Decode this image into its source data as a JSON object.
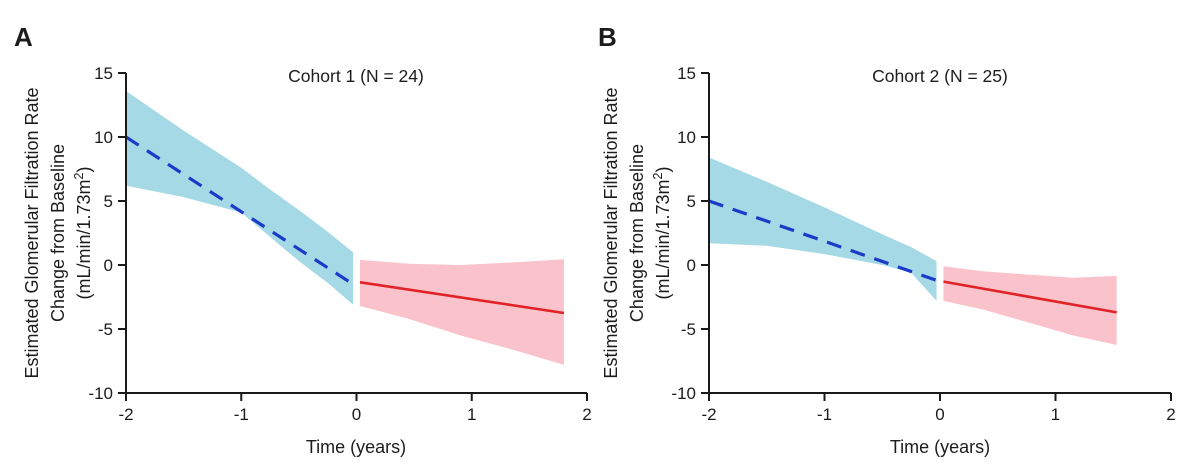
{
  "figure": {
    "background": "#ffffff",
    "axis_color": "#1a1a1a",
    "text_color": "#1c1c1c"
  },
  "chart_data": [
    {
      "type": "line",
      "panel_label": "A",
      "title": "Cohort 1 (N = 24)",
      "xlabel": "Time (years)",
      "ylabel_lines": [
        "Estimated Glomerular Filtration Rate",
        "Change from Baseline",
        "(mL/min/1.73m²)"
      ],
      "ylabel_parts": {
        "pre": "(mL/min/1.73m",
        "sup": "2",
        "post": ")"
      },
      "xlim": [
        -2,
        2
      ],
      "ylim": [
        -10,
        15
      ],
      "xticks": [
        "-2",
        "-1",
        "0",
        "1",
        "2"
      ],
      "yticks": [
        "15",
        "10",
        "5",
        "0",
        "-5",
        "-10"
      ],
      "grid": false,
      "series": [
        {
          "name": "pre-baseline-fit",
          "style": "dashed",
          "color": "#1a3ac8",
          "x": [
            -2,
            -0.03
          ],
          "y": [
            10.0,
            -1.5
          ]
        },
        {
          "name": "post-baseline-fit",
          "style": "solid",
          "color": "#e12227",
          "x": [
            0.03,
            1.8
          ],
          "y": [
            -1.35,
            -3.75
          ]
        }
      ],
      "bands": [
        {
          "name": "pre-baseline-ci",
          "color": "#a6d9e6",
          "x": [
            -2,
            -1.5,
            -1,
            -0.75,
            -0.5,
            -0.25,
            -0.03
          ],
          "upper": [
            13.6,
            10.5,
            7.6,
            5.9,
            4.3,
            2.6,
            1.0
          ],
          "lower": [
            6.2,
            5.3,
            4.1,
            2.2,
            0.3,
            -1.4,
            -3.1
          ]
        },
        {
          "name": "post-baseline-ci",
          "color": "#fac3cc",
          "x": [
            0.03,
            0.45,
            0.9,
            1.35,
            1.8
          ],
          "upper": [
            0.4,
            0.1,
            0.0,
            0.2,
            0.45
          ],
          "lower": [
            -3.2,
            -4.2,
            -5.5,
            -6.6,
            -7.8
          ]
        }
      ]
    },
    {
      "type": "line",
      "panel_label": "B",
      "title": "Cohort 2 (N = 25)",
      "xlabel": "Time (years)",
      "ylabel_lines": [
        "Estimated Glomerular Filtration Rate",
        "Change from Baseline",
        "(mL/min/1.73m²)"
      ],
      "ylabel_parts": {
        "pre": "(mL/min/1.73m",
        "sup": "2",
        "post": ")"
      },
      "xlim": [
        -2,
        2
      ],
      "ylim": [
        -10,
        15
      ],
      "xticks": [
        "-2",
        "-1",
        "0",
        "1",
        "2"
      ],
      "yticks": [
        "15",
        "10",
        "5",
        "0",
        "-5",
        "-10"
      ],
      "grid": false,
      "series": [
        {
          "name": "pre-baseline-fit",
          "style": "dashed",
          "color": "#1a3ac8",
          "x": [
            -2,
            -0.03
          ],
          "y": [
            5.0,
            -1.2
          ]
        },
        {
          "name": "post-baseline-fit",
          "style": "solid",
          "color": "#e12227",
          "x": [
            0.03,
            1.53
          ],
          "y": [
            -1.3,
            -3.7
          ]
        }
      ],
      "bands": [
        {
          "name": "pre-baseline-ci",
          "color": "#a6d9e6",
          "x": [
            -2,
            -1.5,
            -1,
            -0.5,
            -0.25,
            -0.03
          ],
          "upper": [
            8.4,
            6.5,
            4.5,
            2.4,
            1.4,
            0.3
          ],
          "lower": [
            1.7,
            1.5,
            0.85,
            0.0,
            -0.6,
            -2.8
          ]
        },
        {
          "name": "post-baseline-ci",
          "color": "#fac3cc",
          "x": [
            0.03,
            0.38,
            0.77,
            1.15,
            1.53
          ],
          "upper": [
            -0.1,
            -0.5,
            -0.75,
            -1.0,
            -0.85
          ],
          "lower": [
            -2.8,
            -3.5,
            -4.5,
            -5.5,
            -6.25
          ]
        }
      ]
    }
  ]
}
